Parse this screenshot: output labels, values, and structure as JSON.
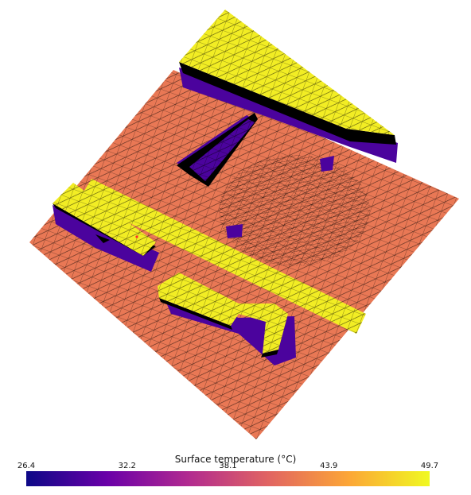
{
  "colorbar": {
    "title": "Surface temperature (°C)",
    "min": 26.4,
    "max": 49.7,
    "ticks": [
      "26.4",
      "32.2",
      "38.1",
      "43.9",
      "49.7"
    ],
    "colormap": "plasma",
    "stops": [
      "#0d0887",
      "#6a00a8",
      "#b12a90",
      "#e16462",
      "#fca636",
      "#f0f921"
    ]
  },
  "scene": {
    "ground_value": 41.8,
    "roof_value": 49.0,
    "shadow_value": 29.5,
    "wall_color": "#000000",
    "mesh_line_color": "#000000"
  }
}
